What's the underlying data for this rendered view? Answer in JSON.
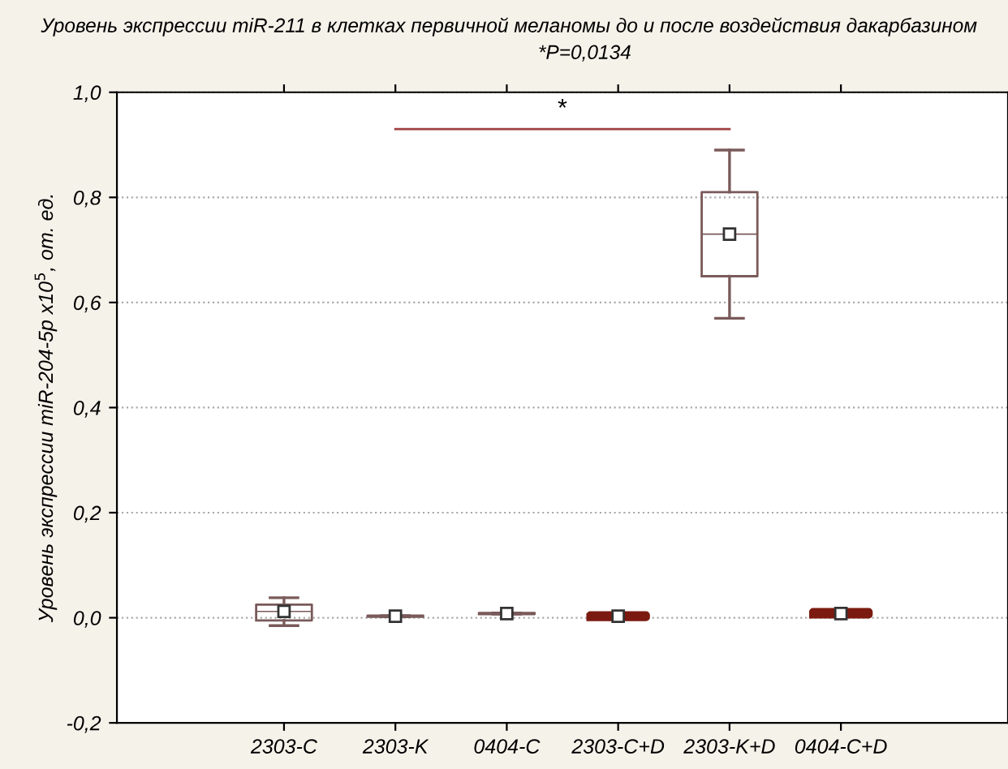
{
  "chart_data": {
    "type": "box",
    "title": "Уровень экспрессии miR-211 в клетках первичной меланомы до и после воздействия дакарбазином",
    "subtitle": "*P=0,0134",
    "ylabel": "Уровень экспрессии miR-204-5p x10$^{5}$, от. ед.",
    "categories": [
      "2303-C",
      "2303-K",
      "0404-C",
      "2303-C+D",
      "2303-K+D",
      "0404-C+D"
    ],
    "boxes": [
      {
        "low": -0.015,
        "q1": -0.005,
        "median": 0.012,
        "q3": 0.025,
        "high": 0.038,
        "mean": 0.012
      },
      {
        "low": 0.002,
        "q1": 0.002,
        "median": 0.003,
        "q3": 0.004,
        "high": 0.004,
        "mean": 0.003
      },
      {
        "low": 0.007,
        "q1": 0.007,
        "median": 0.008,
        "q3": 0.009,
        "high": 0.009,
        "mean": 0.008
      },
      {
        "low": 0.001,
        "q1": 0.001,
        "median": 0.003,
        "q3": 0.005,
        "high": 0.005,
        "mean": 0.003
      },
      {
        "low": 0.57,
        "q1": 0.65,
        "median": 0.73,
        "q3": 0.81,
        "high": 0.89,
        "mean": 0.73
      },
      {
        "low": 0.006,
        "q1": 0.006,
        "median": 0.008,
        "q3": 0.011,
        "high": 0.011,
        "mean": 0.008
      }
    ],
    "colors": [
      "#7a5a5a",
      "#7a5a5a",
      "#7a5a5a",
      "#7b1a10",
      "#7a5a5a",
      "#7b1a10"
    ],
    "ylim": [
      -0.2,
      1.0
    ],
    "yticks": [
      {
        "value": -0.2,
        "label": "-0,2"
      },
      {
        "value": 0.0,
        "label": "0,0"
      },
      {
        "value": 0.2,
        "label": "0,2"
      },
      {
        "value": 0.4,
        "label": "0,4"
      },
      {
        "value": 0.6,
        "label": "0,6"
      },
      {
        "value": 0.8,
        "label": "0,8"
      },
      {
        "value": 1.0,
        "label": "1,0"
      }
    ],
    "grid": "y",
    "annotations": [
      "*"
    ]
  }
}
